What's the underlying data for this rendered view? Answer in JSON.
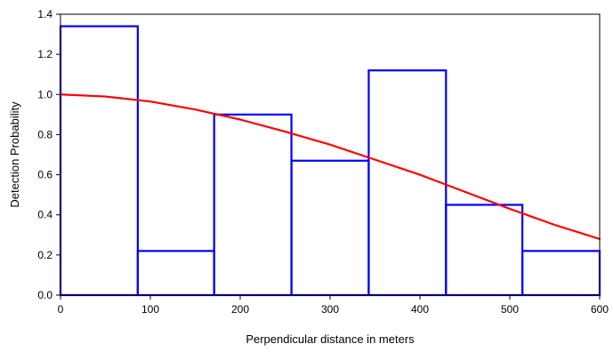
{
  "chart_data": {
    "type": "bar",
    "xlabel": "Perpendicular distance in meters",
    "ylabel": "Detection Probability",
    "xlim": [
      0,
      600
    ],
    "ylim": [
      0,
      1.4
    ],
    "x_ticks": [
      0,
      100,
      200,
      300,
      400,
      500,
      600
    ],
    "x_tick_labels": [
      "0",
      "100",
      "200",
      "300",
      "400",
      "500",
      "600"
    ],
    "y_ticks": [
      0,
      0.2,
      0.4,
      0.6,
      0.8,
      1.0,
      1.2,
      1.4
    ],
    "y_tick_labels": [
      "0.0",
      "0.2",
      "0.4",
      "0.6",
      "0.8",
      "1.0",
      "1.2",
      "1.4"
    ],
    "grid": false,
    "series": [
      {
        "type": "histogram",
        "color": "#0000ff",
        "bin_edges": [
          0,
          86,
          171,
          257,
          343,
          429,
          514,
          600
        ],
        "values": [
          1.34,
          0.22,
          0.9,
          0.67,
          1.12,
          0.45,
          0.22
        ]
      },
      {
        "type": "line",
        "color": "#ff0000",
        "x": [
          0,
          50,
          100,
          150,
          200,
          250,
          300,
          350,
          400,
          450,
          500,
          550,
          600
        ],
        "y": [
          1.0,
          0.99,
          0.965,
          0.925,
          0.875,
          0.815,
          0.75,
          0.675,
          0.6,
          0.515,
          0.43,
          0.35,
          0.28
        ]
      }
    ]
  }
}
